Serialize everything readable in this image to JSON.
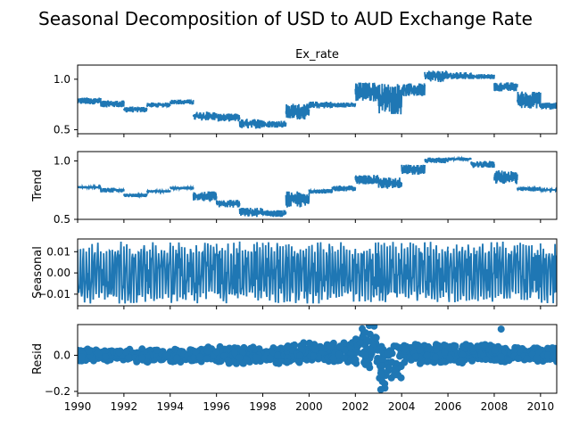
{
  "chart_data": {
    "type": "line",
    "title": "Seasonal Decomposition of USD to AUD Exchange Rate",
    "color": "#1f77b4",
    "x_ticks": [
      "1990",
      "1992",
      "1994",
      "1996",
      "1998",
      "2000",
      "2002",
      "2004",
      "2006",
      "2008",
      "2010"
    ],
    "xlim": [
      1990,
      2010.7
    ],
    "panels": [
      {
        "name": "ex-rate",
        "title": "Ex_rate",
        "ylabel": "",
        "ylim": [
          0.46,
          1.14
        ],
        "y_ticks": [
          {
            "v": 1.0,
            "label": "1.0"
          },
          {
            "v": 0.5,
            "label": "0.5"
          }
        ],
        "style": "line",
        "segments": [
          {
            "x0": 1990.0,
            "x1": 1991.0,
            "lo": 0.75,
            "hi": 0.82
          },
          {
            "x0": 1991.0,
            "x1": 1992.0,
            "lo": 0.72,
            "hi": 0.79
          },
          {
            "x0": 1992.0,
            "x1": 1993.0,
            "lo": 0.67,
            "hi": 0.73
          },
          {
            "x0": 1993.0,
            "x1": 1994.0,
            "lo": 0.72,
            "hi": 0.77
          },
          {
            "x0": 1994.0,
            "x1": 1995.0,
            "lo": 0.75,
            "hi": 0.8
          },
          {
            "x0": 1995.0,
            "x1": 1996.0,
            "lo": 0.59,
            "hi": 0.68
          },
          {
            "x0": 1996.0,
            "x1": 1997.0,
            "lo": 0.58,
            "hi": 0.66
          },
          {
            "x0": 1997.0,
            "x1": 1998.0,
            "lo": 0.51,
            "hi": 0.61
          },
          {
            "x0": 1998.0,
            "x1": 1999.0,
            "lo": 0.52,
            "hi": 0.59
          },
          {
            "x0": 1999.0,
            "x1": 2000.0,
            "lo": 0.6,
            "hi": 0.76
          },
          {
            "x0": 2000.0,
            "x1": 2001.0,
            "lo": 0.71,
            "hi": 0.78
          },
          {
            "x0": 2001.0,
            "x1": 2002.0,
            "lo": 0.72,
            "hi": 0.77
          },
          {
            "x0": 2002.0,
            "x1": 2003.0,
            "lo": 0.78,
            "hi": 0.97
          },
          {
            "x0": 2003.0,
            "x1": 2004.0,
            "lo": 0.65,
            "hi": 0.96
          },
          {
            "x0": 2004.0,
            "x1": 2005.0,
            "lo": 0.83,
            "hi": 0.96
          },
          {
            "x0": 2005.0,
            "x1": 2006.0,
            "lo": 0.97,
            "hi": 1.09
          },
          {
            "x0": 2006.0,
            "x1": 2007.0,
            "lo": 1.0,
            "hi": 1.07
          },
          {
            "x0": 2007.0,
            "x1": 2008.0,
            "lo": 1.0,
            "hi": 1.05
          },
          {
            "x0": 2008.0,
            "x1": 2009.0,
            "lo": 0.88,
            "hi": 0.97
          },
          {
            "x0": 2009.0,
            "x1": 2010.0,
            "lo": 0.71,
            "hi": 0.88
          },
          {
            "x0": 2010.0,
            "x1": 2010.7,
            "lo": 0.7,
            "hi": 0.77
          }
        ]
      },
      {
        "name": "trend",
        "title": "",
        "ylabel": "Trend",
        "ylim": [
          0.5,
          1.08
        ],
        "y_ticks": [
          {
            "v": 1.0,
            "label": "1.0"
          },
          {
            "v": 0.5,
            "label": "0.5"
          }
        ],
        "style": "line",
        "segments": [
          {
            "x0": 1990.0,
            "x1": 1991.0,
            "lo": 0.765,
            "hi": 0.785
          },
          {
            "x0": 1991.0,
            "x1": 1992.0,
            "lo": 0.73,
            "hi": 0.77
          },
          {
            "x0": 1992.0,
            "x1": 1993.0,
            "lo": 0.69,
            "hi": 0.72
          },
          {
            "x0": 1993.0,
            "x1": 1994.0,
            "lo": 0.73,
            "hi": 0.75
          },
          {
            "x0": 1994.0,
            "x1": 1995.0,
            "lo": 0.755,
            "hi": 0.78
          },
          {
            "x0": 1995.0,
            "x1": 1996.0,
            "lo": 0.65,
            "hi": 0.74
          },
          {
            "x0": 1996.0,
            "x1": 1997.0,
            "lo": 0.6,
            "hi": 0.67
          },
          {
            "x0": 1997.0,
            "x1": 1998.0,
            "lo": 0.52,
            "hi": 0.6
          },
          {
            "x0": 1998.0,
            "x1": 1999.0,
            "lo": 0.52,
            "hi": 0.58
          },
          {
            "x0": 1999.0,
            "x1": 2000.0,
            "lo": 0.6,
            "hi": 0.74
          },
          {
            "x0": 2000.0,
            "x1": 2001.0,
            "lo": 0.72,
            "hi": 0.76
          },
          {
            "x0": 2001.0,
            "x1": 2002.0,
            "lo": 0.74,
            "hi": 0.79
          },
          {
            "x0": 2002.0,
            "x1": 2003.0,
            "lo": 0.8,
            "hi": 0.88
          },
          {
            "x0": 2003.0,
            "x1": 2004.0,
            "lo": 0.76,
            "hi": 0.86
          },
          {
            "x0": 2004.0,
            "x1": 2005.0,
            "lo": 0.88,
            "hi": 0.97
          },
          {
            "x0": 2005.0,
            "x1": 2006.0,
            "lo": 0.98,
            "hi": 1.03
          },
          {
            "x0": 2006.0,
            "x1": 2007.0,
            "lo": 1.0,
            "hi": 1.03
          },
          {
            "x0": 2007.0,
            "x1": 2008.0,
            "lo": 0.94,
            "hi": 1.0
          },
          {
            "x0": 2008.0,
            "x1": 2009.0,
            "lo": 0.8,
            "hi": 0.92
          },
          {
            "x0": 2009.0,
            "x1": 2010.0,
            "lo": 0.74,
            "hi": 0.78
          },
          {
            "x0": 2010.0,
            "x1": 2010.7,
            "lo": 0.745,
            "hi": 0.76
          }
        ]
      },
      {
        "name": "seasonal",
        "title": "",
        "ylabel": "Seasonal",
        "ylim": [
          -0.0155,
          0.016
        ],
        "y_ticks": [
          {
            "v": 0.01,
            "label": "0.01"
          },
          {
            "v": 0.0,
            "label": "0.00"
          },
          {
            "v": -0.01,
            "label": "−0.01"
          }
        ],
        "style": "seasonal",
        "amplitude": [
          -0.0145,
          0.0148
        ],
        "period_years": 1.0
      },
      {
        "name": "resid",
        "title": "",
        "ylabel": "Resid",
        "ylim": [
          -0.21,
          0.17
        ],
        "y_ticks": [
          {
            "v": 0.0,
            "label": "0.0"
          },
          {
            "v": -0.2,
            "label": "−0.2"
          }
        ],
        "style": "scatter",
        "segments": [
          {
            "x0": 1990.0,
            "x1": 1995.0,
            "lo": -0.04,
            "hi": 0.04
          },
          {
            "x0": 1995.0,
            "x1": 1999.0,
            "lo": -0.05,
            "hi": 0.05
          },
          {
            "x0": 1999.0,
            "x1": 2002.0,
            "lo": -0.05,
            "hi": 0.08
          },
          {
            "x0": 2002.0,
            "x1": 2003.0,
            "lo": -0.08,
            "hi": 0.17
          },
          {
            "x0": 2003.0,
            "x1": 2004.0,
            "lo": -0.2,
            "hi": 0.1
          },
          {
            "x0": 2004.0,
            "x1": 2008.0,
            "lo": -0.05,
            "hi": 0.07
          },
          {
            "x0": 2008.0,
            "x1": 2010.7,
            "lo": -0.04,
            "hi": 0.05
          }
        ],
        "outliers": [
          {
            "x": 2008.3,
            "y": 0.145
          },
          {
            "x": 2002.6,
            "y": 0.165
          },
          {
            "x": 2003.1,
            "y": -0.19
          }
        ]
      }
    ]
  }
}
